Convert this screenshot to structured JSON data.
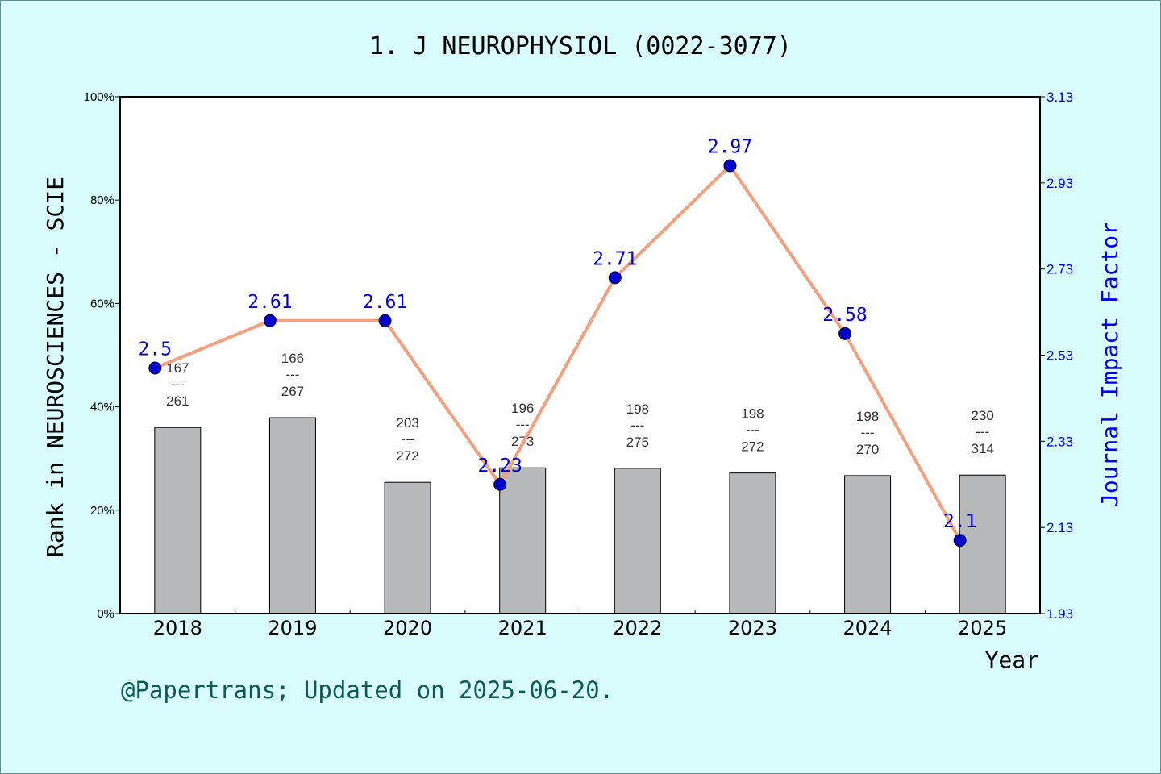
{
  "chart_data": {
    "type": "bar+line",
    "title": "1. J NEUROPHYSIOL (0022-3077)",
    "xlabel": "Year",
    "ylabel_left": "Rank in NEUROSCIENCES - SCIE",
    "ylabel_right": "Journal Impact Factor",
    "categories": [
      "2018",
      "2019",
      "2020",
      "2021",
      "2022",
      "2023",
      "2024",
      "2025"
    ],
    "left_axis": {
      "ylim": [
        0,
        100
      ],
      "ticks": [
        "0%",
        "20%",
        "40%",
        "60%",
        "80%",
        "100%"
      ],
      "tick_values": [
        0,
        20,
        40,
        60,
        80,
        100
      ]
    },
    "right_axis": {
      "ylim": [
        1.93,
        3.13
      ],
      "ticks": [
        "1.93",
        "2.13",
        "2.33",
        "2.53",
        "2.73",
        "2.93",
        "3.13"
      ],
      "tick_values": [
        1.93,
        2.13,
        2.33,
        2.53,
        2.73,
        2.93,
        3.13
      ]
    },
    "bars": {
      "name": "Rank percentile",
      "values": [
        36.0,
        37.9,
        25.4,
        28.2,
        28.1,
        27.2,
        26.7,
        26.8
      ],
      "color": "#b8b9ba",
      "labels": [
        {
          "rank": "167",
          "sep": "---",
          "total": "261"
        },
        {
          "rank": "166",
          "sep": "---",
          "total": "267"
        },
        {
          "rank": "203",
          "sep": "---",
          "total": "272"
        },
        {
          "rank": "196",
          "sep": "---",
          "total": "273"
        },
        {
          "rank": "198",
          "sep": "---",
          "total": "275"
        },
        {
          "rank": "198",
          "sep": "---",
          "total": "272"
        },
        {
          "rank": "198",
          "sep": "---",
          "total": "270"
        },
        {
          "rank": "230",
          "sep": "---",
          "total": "314"
        }
      ]
    },
    "line": {
      "name": "Journal Impact Factor",
      "values": [
        2.5,
        2.61,
        2.61,
        2.23,
        2.71,
        2.97,
        2.58,
        2.1
      ],
      "labels": [
        "2.5",
        "2.61",
        "2.61",
        "2.23",
        "2.71",
        "2.97",
        "2.58",
        "2.1"
      ],
      "line_color": "#f4a07e",
      "marker_color": "#0000cc"
    }
  },
  "footer": "@Papertrans; Updated on 2025-06-20."
}
